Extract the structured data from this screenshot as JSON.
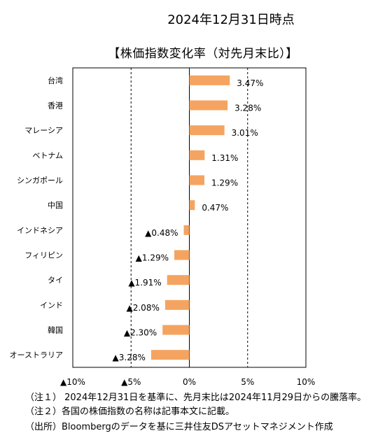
{
  "date_heading": "2024年12月31日時点",
  "chart_title": "【株価指数変化率（対先月末比）】",
  "chart_data": {
    "type": "bar",
    "orientation": "horizontal",
    "categories": [
      "台湾",
      "香港",
      "マレーシア",
      "ベトナム",
      "シンガポール",
      "中国",
      "インドネシア",
      "フィリピン",
      "タイ",
      "インド",
      "韓国",
      "オーストラリア"
    ],
    "values": [
      3.47,
      3.28,
      3.01,
      1.31,
      1.29,
      0.47,
      -0.48,
      -1.29,
      -1.91,
      -2.08,
      -2.3,
      -3.28
    ],
    "value_labels": [
      "3.47%",
      "3.28%",
      "3.01%",
      "1.31%",
      "1.29%",
      "0.47%",
      "▲0.48%",
      "▲1.29%",
      "▲1.91%",
      "▲2.08%",
      "▲2.30%",
      "▲3.28%"
    ],
    "xlim": [
      -10,
      10
    ],
    "xticks": [
      -10,
      -5,
      0,
      5,
      10
    ],
    "xtick_labels": [
      "▲10%",
      "▲5%",
      "0%",
      "5%",
      "10%"
    ],
    "bar_color": "#f4a460",
    "grid": "vertical dashed at ±5%",
    "legend": "none"
  },
  "notes": [
    "（注１） 2024年12月31日を基準に、先月末比は2024年11月29日からの騰落率。",
    "（注２）各国の株価指数の名称は記事本文に記載。",
    "（出所）Bloombergのデータを基に三井住友DSアセットマネジメント作成"
  ]
}
